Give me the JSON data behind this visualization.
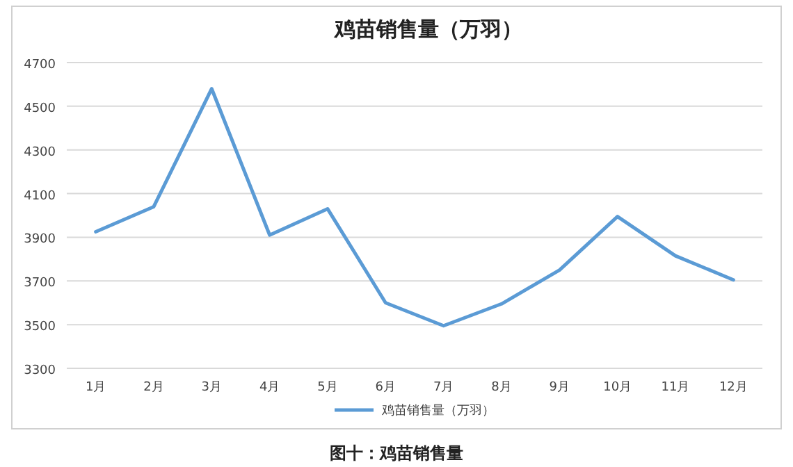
{
  "chart_data": {
    "type": "line",
    "title": "鸡苗销售量（万羽）",
    "categories": [
      "1月",
      "2月",
      "3月",
      "4月",
      "5月",
      "6月",
      "7月",
      "8月",
      "9月",
      "10月",
      "11月",
      "12月"
    ],
    "series": [
      {
        "name": "鸡苗销售量（万羽）",
        "color": "#5b9bd5",
        "values": [
          3925,
          4040,
          4580,
          3910,
          4030,
          3600,
          3495,
          3595,
          3750,
          3995,
          3815,
          3705
        ]
      }
    ],
    "ylim": [
      3300,
      4700
    ],
    "yticks": [
      3300,
      3500,
      3700,
      3900,
      4100,
      4300,
      4500,
      4700
    ],
    "grid": "y",
    "legend": "bottom",
    "marker": "none",
    "line_style": "solid",
    "annotations": [
      "图十：鸡苗销售量"
    ]
  }
}
